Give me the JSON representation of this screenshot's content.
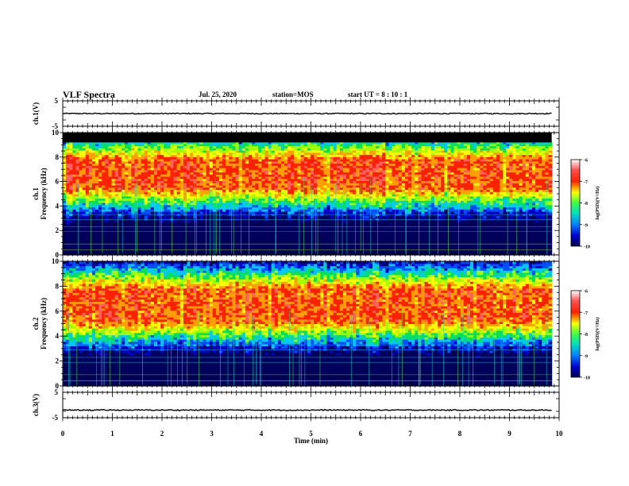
{
  "header": {
    "title": "VLF Spectra",
    "date": "Jul. 25, 2020",
    "station": "station=MOS",
    "start": "start UT =  8 : 10 : 1"
  },
  "colors": {
    "colormap": [
      "#00005a",
      "#0000c8",
      "#0050ff",
      "#00c8ff",
      "#00e060",
      "#a0ff00",
      "#ffff00",
      "#ffa000",
      "#ff2000",
      "#ff6060",
      "#ffffff"
    ],
    "trace": "#000000",
    "saturation_band": "#000000"
  },
  "chart_data": [
    {
      "type": "line",
      "name": "ch1-waveform",
      "ylabel": "ch.1(V)",
      "ylim": [
        -5,
        5
      ],
      "yticks": [
        "5",
        "-5"
      ],
      "x": [
        0,
        9.85
      ],
      "y": [
        0,
        0
      ],
      "xlim": [
        0,
        10
      ]
    },
    {
      "type": "heatmap",
      "name": "ch1-spectrogram",
      "ylabel": "ch.1\nFrequency (kHz)",
      "ylim": [
        0,
        10
      ],
      "yticks": [
        "0",
        "2",
        "4",
        "6",
        "8",
        "10"
      ],
      "xlim": [
        0,
        10
      ],
      "data_xmax": 9.85,
      "saturated_band_khz": [
        9.2,
        10
      ],
      "peak_band_khz": [
        5.5,
        7.8
      ],
      "peak_level": -7,
      "background_level": -9.5,
      "colorbar": {
        "label": "log(PSD)(V²/Hz)",
        "range": [
          -10,
          -6
        ],
        "ticks": [
          "-6",
          "-7",
          "-8",
          "-9",
          "-10"
        ]
      }
    },
    {
      "type": "heatmap",
      "name": "ch2-spectrogram",
      "ylabel": "ch.2\nFrequency (kHz)",
      "ylim": [
        0,
        10
      ],
      "yticks": [
        "0",
        "2",
        "4",
        "6",
        "8",
        "10"
      ],
      "xlim": [
        0,
        10
      ],
      "data_xmax": 9.85,
      "peak_band_khz": [
        5.2,
        7.8
      ],
      "peak_level": -7,
      "background_level": -9.5,
      "colorbar": {
        "label": "log(PSD)(V²/Hz)",
        "range": [
          -10,
          -6
        ],
        "ticks": [
          "-6",
          "-7",
          "-8",
          "-9",
          "-10"
        ]
      }
    },
    {
      "type": "line",
      "name": "ch3-waveform",
      "ylabel": "ch.3(V)",
      "ylim": [
        -5,
        5
      ],
      "yticks": [
        "5",
        "-5"
      ],
      "x": [
        0,
        9.85
      ],
      "y": [
        -2,
        -2
      ],
      "xlim": [
        0,
        10
      ],
      "xlabel": "Time (min)",
      "xticks": [
        "0",
        "1",
        "2",
        "3",
        "4",
        "5",
        "6",
        "7",
        "8",
        "9",
        "10"
      ]
    }
  ]
}
